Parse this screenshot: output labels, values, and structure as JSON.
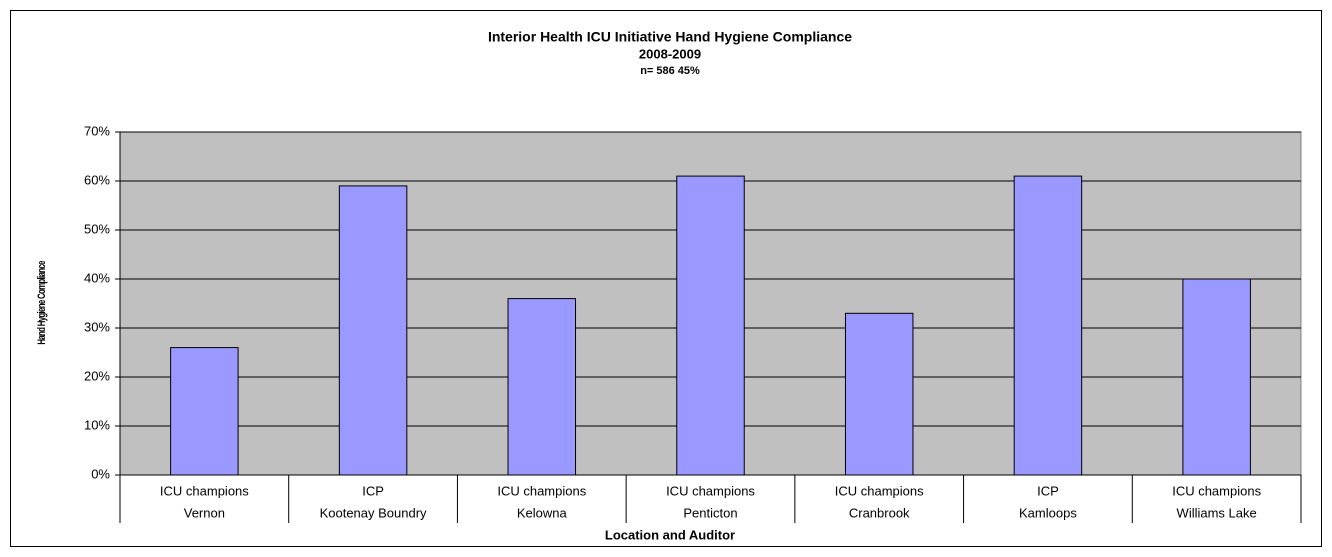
{
  "chart_data": {
    "type": "bar",
    "title": "Interior Health ICU Initiative Hand Hygiene Compliance",
    "subtitle": "2008-2009",
    "note": "n= 586  45%",
    "x_label": "Location and Auditor",
    "y_label": "Hand Hygiene Compliance",
    "auditors": [
      "ICU champions",
      "ICP",
      "ICU champions",
      "ICU champions",
      "ICU champions",
      "ICP",
      "ICU champions"
    ],
    "categories": [
      "Vernon",
      "Kootenay Boundry",
      "Kelowna",
      "Penticton",
      "Cranbrook",
      "Kamloops",
      "Williams Lake"
    ],
    "values": [
      26,
      59,
      36,
      61,
      33,
      61,
      40
    ],
    "color": "#9999ff",
    "ylim": [
      0,
      70
    ],
    "yticks": [
      {
        "value": 0,
        "label": "0%"
      },
      {
        "value": 10,
        "label": "10%"
      },
      {
        "value": 20,
        "label": "20%"
      },
      {
        "value": 30,
        "label": "30%"
      },
      {
        "value": 40,
        "label": "40%"
      },
      {
        "value": 50,
        "label": "50%"
      },
      {
        "value": 60,
        "label": "60%"
      },
      {
        "value": 70,
        "label": "70%"
      }
    ],
    "grid": true
  }
}
